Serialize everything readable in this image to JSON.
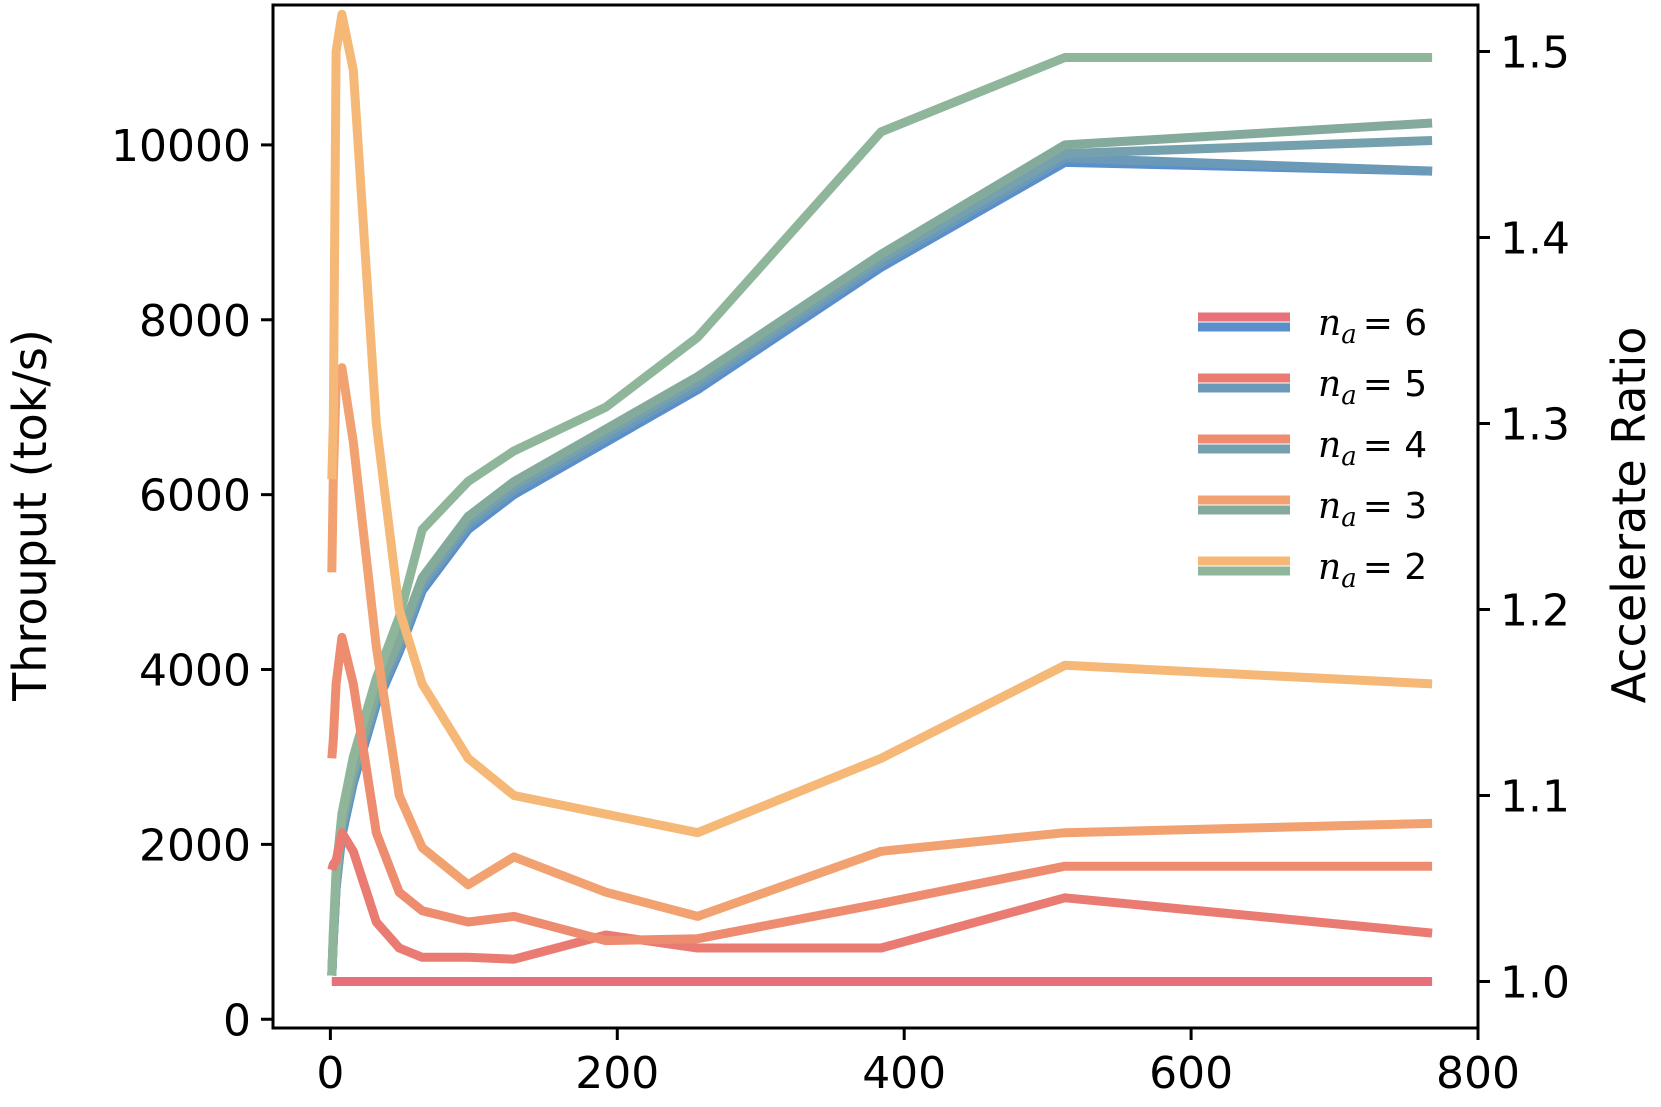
{
  "chart_data": {
    "type": "line",
    "x": [
      1,
      2,
      4,
      8,
      16,
      32,
      48,
      64,
      96,
      128,
      192,
      256,
      384,
      512,
      768
    ],
    "xlim": [
      -40,
      800
    ],
    "xticks": [
      "0",
      "200",
      "400",
      "600",
      "800"
    ],
    "xtick_values": [
      0,
      200,
      400,
      600,
      800
    ],
    "ylabel": "Throuput (tok/s)",
    "ylim": [
      -100,
      11600
    ],
    "yticks": [
      "0",
      "2000",
      "4000",
      "6000",
      "8000",
      "10000"
    ],
    "ytick_values": [
      0,
      2000,
      4000,
      6000,
      8000,
      10000
    ],
    "y2label": "Accelerate Ratio",
    "y2lim": [
      0.975,
      1.525
    ],
    "y2ticks": [
      "1.0",
      "1.1",
      "1.2",
      "1.3",
      "1.4",
      "1.5"
    ],
    "y2tick_values": [
      1.0,
      1.1,
      1.2,
      1.3,
      1.4,
      1.5
    ],
    "legend_position": "center-right",
    "throughput_series": [
      {
        "key": "na6",
        "color": "#5b8fcc",
        "values": [
          500,
          900,
          1500,
          2100,
          2700,
          3600,
          4200,
          4900,
          5600,
          6000,
          6600,
          7200,
          8600,
          9800,
          9700
        ]
      },
      {
        "key": "na5",
        "color": "#6a9ab8",
        "values": [
          500,
          900,
          1500,
          2150,
          2750,
          3650,
          4250,
          4950,
          5650,
          6050,
          6650,
          7250,
          8650,
          9850,
          9700
        ]
      },
      {
        "key": "na4",
        "color": "#75a0ae",
        "values": [
          500,
          920,
          1550,
          2200,
          2800,
          3700,
          4300,
          5000,
          5700,
          6100,
          6700,
          7300,
          8700,
          9900,
          10050
        ]
      },
      {
        "key": "na3",
        "color": "#84aa9c",
        "values": [
          500,
          950,
          1600,
          2250,
          2850,
          3750,
          4350,
          5050,
          5750,
          6150,
          6750,
          7350,
          8750,
          10000,
          10250
        ]
      },
      {
        "key": "na2",
        "color": "#8fb59a",
        "values": [
          500,
          1000,
          1700,
          2350,
          3000,
          3900,
          4600,
          5600,
          6150,
          6500,
          7000,
          7800,
          10150,
          11000,
          11000
        ]
      }
    ],
    "ratio_series": [
      {
        "key": "na6",
        "color": "#e8707a",
        "values": [
          1.0,
          1.0,
          1.0,
          1.0,
          1.0,
          1.0,
          1.0,
          1.0,
          1.0,
          1.0,
          1.0,
          1.0,
          1.0,
          1.0,
          1.0
        ]
      },
      {
        "key": "na5",
        "color": "#ea7b72",
        "values": [
          1.06,
          1.063,
          1.065,
          1.08,
          1.07,
          1.032,
          1.018,
          1.013,
          1.013,
          1.012,
          1.025,
          1.018,
          1.018,
          1.045,
          1.026
        ]
      },
      {
        "key": "na4",
        "color": "#ee8c70",
        "values": [
          1.12,
          1.13,
          1.16,
          1.185,
          1.16,
          1.08,
          1.048,
          1.038,
          1.032,
          1.035,
          1.022,
          1.023,
          1.042,
          1.062,
          1.062
        ]
      },
      {
        "key": "na3",
        "color": "#f2a170",
        "values": [
          1.22,
          1.27,
          1.32,
          1.33,
          1.29,
          1.18,
          1.1,
          1.072,
          1.052,
          1.067,
          1.048,
          1.035,
          1.07,
          1.08,
          1.085
        ]
      },
      {
        "key": "na2",
        "color": "#f5b877",
        "values": [
          1.27,
          1.3,
          1.5,
          1.52,
          1.49,
          1.3,
          1.2,
          1.16,
          1.12,
          1.1,
          1.09,
          1.08,
          1.12,
          1.17,
          1.16
        ]
      }
    ],
    "legend": [
      {
        "label": "= 6",
        "top_color": "#e8707a",
        "bottom_color": "#5b8fcc"
      },
      {
        "label": "= 5",
        "top_color": "#ea7b72",
        "bottom_color": "#6a9ab8"
      },
      {
        "label": "= 4",
        "top_color": "#ee8c70",
        "bottom_color": "#75a0ae"
      },
      {
        "label": "= 3",
        "top_color": "#f2a170",
        "bottom_color": "#84aa9c"
      },
      {
        "label": "= 2",
        "top_color": "#f5b877",
        "bottom_color": "#8fb59a"
      }
    ],
    "legend_var": "n",
    "legend_sub": "a"
  }
}
